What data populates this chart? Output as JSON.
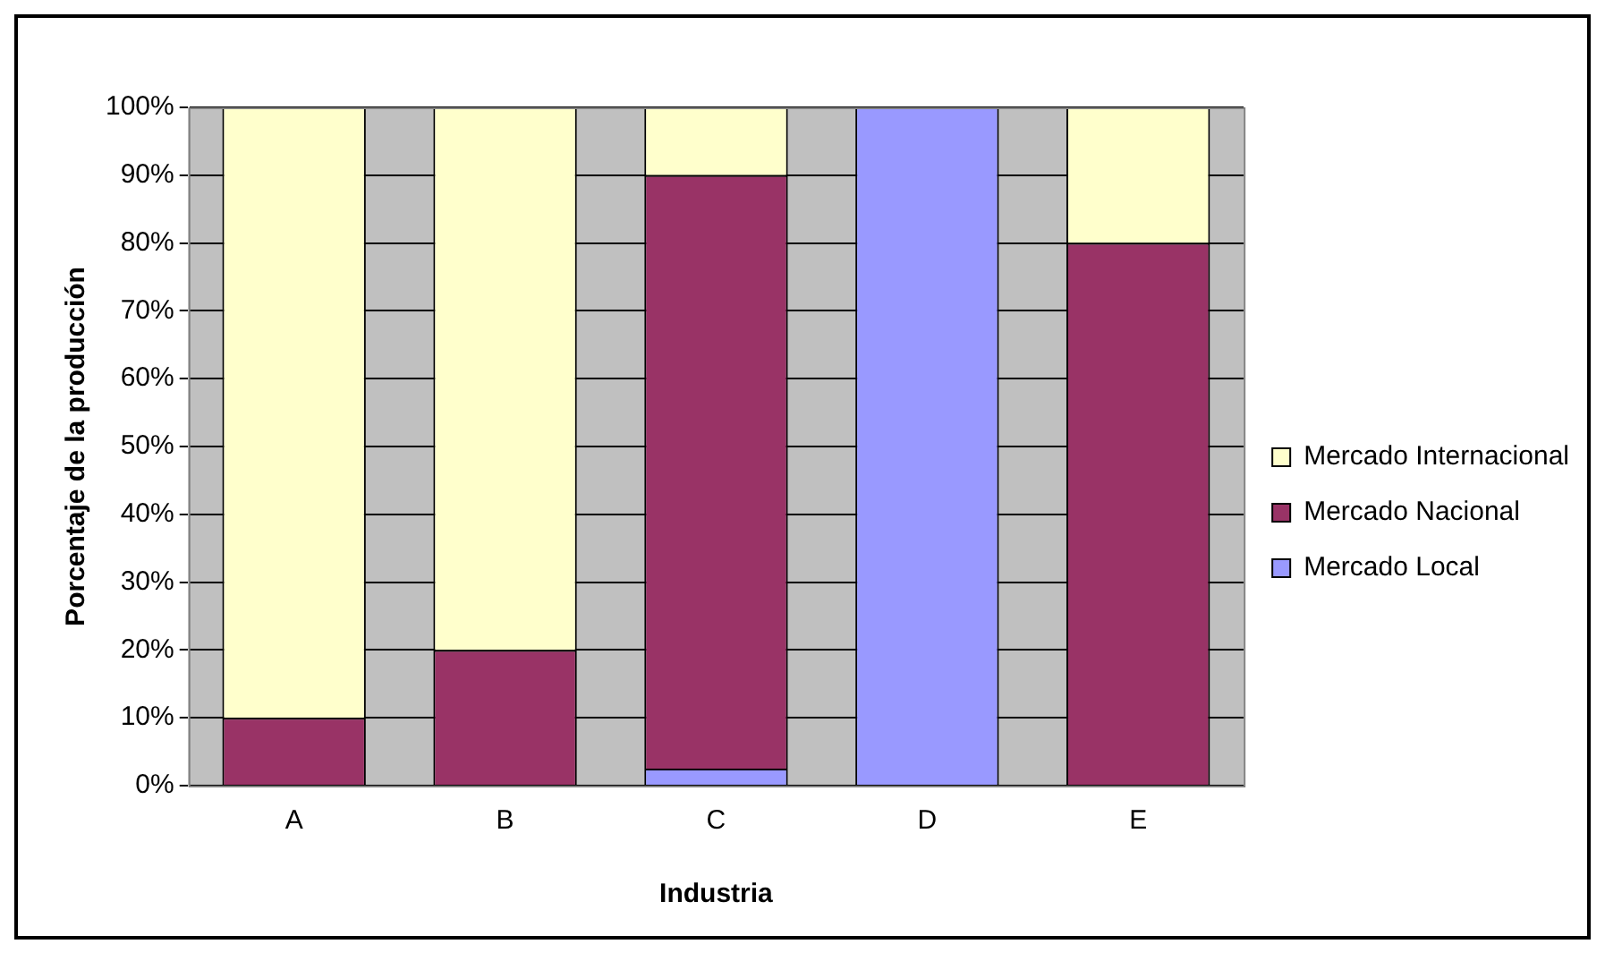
{
  "chart_data": {
    "type": "bar",
    "stacked": true,
    "xlabel": "Industria",
    "ylabel": "Porcentaje de la producción",
    "categories": [
      "A",
      "B",
      "C",
      "D",
      "E"
    ],
    "series": [
      {
        "name": "Mercado Local",
        "color": "#9999ff",
        "values": [
          0,
          0,
          2.5,
          100,
          0
        ]
      },
      {
        "name": "Mercado Nacional",
        "color": "#993366",
        "values": [
          10,
          20,
          87.5,
          0,
          80
        ]
      },
      {
        "name": "Mercado Internacional",
        "color": "#ffffcc",
        "values": [
          90,
          80,
          10,
          0,
          20
        ]
      }
    ],
    "ylim": [
      0,
      100
    ],
    "yticks": [
      {
        "value": 0,
        "label": "0%"
      },
      {
        "value": 10,
        "label": "10%"
      },
      {
        "value": 20,
        "label": "20%"
      },
      {
        "value": 30,
        "label": "30%"
      },
      {
        "value": 40,
        "label": "40%"
      },
      {
        "value": 50,
        "label": "50%"
      },
      {
        "value": 60,
        "label": "60%"
      },
      {
        "value": 70,
        "label": "70%"
      },
      {
        "value": 80,
        "label": "80%"
      },
      {
        "value": 90,
        "label": "90%"
      },
      {
        "value": 100,
        "label": "100%"
      }
    ],
    "grid": "y",
    "legend": "right"
  }
}
